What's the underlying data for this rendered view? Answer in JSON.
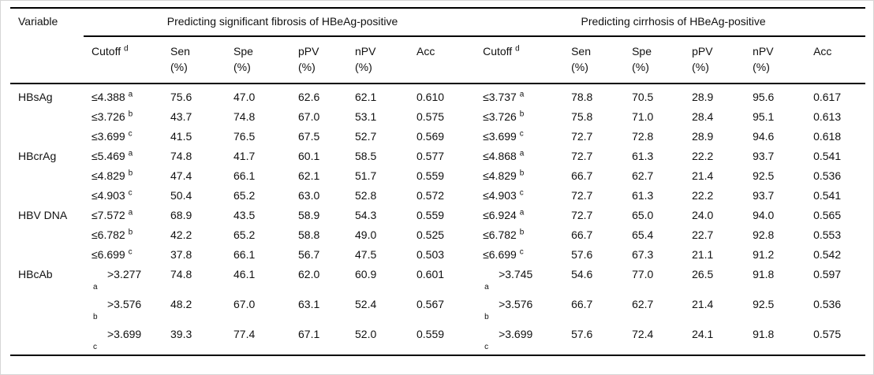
{
  "header": {
    "variable": "Variable",
    "group_fibrosis": "Predicting significant fibrosis of HBeAg-positive",
    "group_cirrhosis": "Predicting cirrhosis of HBeAg-positive",
    "cutoff_label": "Cutoff",
    "cutoff_sup": "d",
    "sen": "Sen",
    "spe": "Spe",
    "ppv": "pPV",
    "npv": "nPV",
    "acc": "Acc",
    "pct_unit": "(%)"
  },
  "rows": [
    {
      "variable": "HBsAg",
      "fib": {
        "cutoff": "≤4.388",
        "sup": "a",
        "wrapped": false,
        "sen": "75.6",
        "spe": "47.0",
        "ppv": "62.6",
        "npv": "62.1",
        "acc": "0.610"
      },
      "cir": {
        "cutoff": "≤3.737",
        "sup": "a",
        "wrapped": false,
        "sen": "78.8",
        "spe": "70.5",
        "ppv": "28.9",
        "npv": "95.6",
        "acc": "0.617"
      }
    },
    {
      "variable": "",
      "fib": {
        "cutoff": "≤3.726",
        "sup": "b",
        "wrapped": false,
        "sen": "43.7",
        "spe": "74.8",
        "ppv": "67.0",
        "npv": "53.1",
        "acc": "0.575"
      },
      "cir": {
        "cutoff": "≤3.726",
        "sup": "b",
        "wrapped": false,
        "sen": "75.8",
        "spe": "71.0",
        "ppv": "28.4",
        "npv": "95.1",
        "acc": "0.613"
      }
    },
    {
      "variable": "",
      "fib": {
        "cutoff": "≤3.699",
        "sup": "c",
        "wrapped": false,
        "sen": "41.5",
        "spe": "76.5",
        "ppv": "67.5",
        "npv": "52.7",
        "acc": "0.569"
      },
      "cir": {
        "cutoff": "≤3.699",
        "sup": "c",
        "wrapped": false,
        "sen": "72.7",
        "spe": "72.8",
        "ppv": "28.9",
        "npv": "94.6",
        "acc": "0.618"
      }
    },
    {
      "variable": "HBcrAg",
      "fib": {
        "cutoff": "≤5.469",
        "sup": "a",
        "wrapped": false,
        "sen": "74.8",
        "spe": "41.7",
        "ppv": "60.1",
        "npv": "58.5",
        "acc": "0.577"
      },
      "cir": {
        "cutoff": "≤4.868",
        "sup": "a",
        "wrapped": false,
        "sen": "72.7",
        "spe": "61.3",
        "ppv": "22.2",
        "npv": "93.7",
        "acc": "0.541"
      }
    },
    {
      "variable": "",
      "fib": {
        "cutoff": "≤4.829",
        "sup": "b",
        "wrapped": false,
        "sen": "47.4",
        "spe": "66.1",
        "ppv": "62.1",
        "npv": "51.7",
        "acc": "0.559"
      },
      "cir": {
        "cutoff": "≤4.829",
        "sup": "b",
        "wrapped": false,
        "sen": "66.7",
        "spe": "62.7",
        "ppv": "21.4",
        "npv": "92.5",
        "acc": "0.536"
      }
    },
    {
      "variable": "",
      "fib": {
        "cutoff": "≤4.903",
        "sup": "c",
        "wrapped": false,
        "sen": "50.4",
        "spe": "65.2",
        "ppv": "63.0",
        "npv": "52.8",
        "acc": "0.572"
      },
      "cir": {
        "cutoff": "≤4.903",
        "sup": "c",
        "wrapped": false,
        "sen": "72.7",
        "spe": "61.3",
        "ppv": "22.2",
        "npv": "93.7",
        "acc": "0.541"
      }
    },
    {
      "variable": "HBV\nDNA",
      "fib": {
        "cutoff": "≤7.572",
        "sup": "a",
        "wrapped": false,
        "sen": "68.9",
        "spe": "43.5",
        "ppv": "58.9",
        "npv": "54.3",
        "acc": "0.559"
      },
      "cir": {
        "cutoff": "≤6.924",
        "sup": "a",
        "wrapped": false,
        "sen": "72.7",
        "spe": "65.0",
        "ppv": "24.0",
        "npv": "94.0",
        "acc": "0.565"
      }
    },
    {
      "variable": "",
      "fib": {
        "cutoff": "≤6.782",
        "sup": "b",
        "wrapped": false,
        "sen": "42.2",
        "spe": "65.2",
        "ppv": "58.8",
        "npv": "49.0",
        "acc": "0.525"
      },
      "cir": {
        "cutoff": "≤6.782",
        "sup": "b",
        "wrapped": false,
        "sen": "66.7",
        "spe": "65.4",
        "ppv": "22.7",
        "npv": "92.8",
        "acc": "0.553"
      }
    },
    {
      "variable": "",
      "fib": {
        "cutoff": "≤6.699",
        "sup": "c",
        "wrapped": false,
        "sen": "37.8",
        "spe": "66.1",
        "ppv": "56.7",
        "npv": "47.5",
        "acc": "0.503"
      },
      "cir": {
        "cutoff": "≤6.699",
        "sup": "c",
        "wrapped": false,
        "sen": "57.6",
        "spe": "67.3",
        "ppv": "21.1",
        "npv": "91.2",
        "acc": "0.542"
      }
    },
    {
      "variable": "HBcAb",
      "fib": {
        "cutoff": ">3.277",
        "sup": "a",
        "wrapped": true,
        "sen": "74.8",
        "spe": "46.1",
        "ppv": "62.0",
        "npv": "60.9",
        "acc": "0.601"
      },
      "cir": {
        "cutoff": ">3.745",
        "sup": "a",
        "wrapped": true,
        "sen": "54.6",
        "spe": "77.0",
        "ppv": "26.5",
        "npv": "91.8",
        "acc": "0.597"
      }
    },
    {
      "variable": "",
      "fib": {
        "cutoff": ">3.576",
        "sup": "b",
        "wrapped": true,
        "sen": "48.2",
        "spe": "67.0",
        "ppv": "63.1",
        "npv": "52.4",
        "acc": "0.567"
      },
      "cir": {
        "cutoff": ">3.576",
        "sup": "b",
        "wrapped": true,
        "sen": "66.7",
        "spe": "62.7",
        "ppv": "21.4",
        "npv": "92.5",
        "acc": "0.536"
      }
    },
    {
      "variable": "",
      "fib": {
        "cutoff": ">3.699",
        "sup": "c",
        "wrapped": true,
        "sen": "39.3",
        "spe": "77.4",
        "ppv": "67.1",
        "npv": "52.0",
        "acc": "0.559"
      },
      "cir": {
        "cutoff": ">3.699",
        "sup": "c",
        "wrapped": true,
        "sen": "57.6",
        "spe": "72.4",
        "ppv": "24.1",
        "npv": "91.8",
        "acc": "0.575"
      }
    }
  ]
}
